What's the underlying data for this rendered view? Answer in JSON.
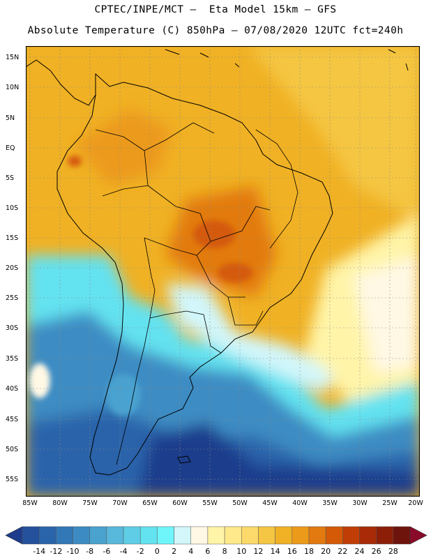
{
  "header": {
    "line1": "CPTEC/INPE/MCT —  Eta Model 15km — GFS",
    "line2": "Absolute Temperature (C) 850hPa — 07/08/2020 12UTC fct=240h"
  },
  "map": {
    "lat_labels": [
      "15N",
      "10N",
      "5N",
      "EQ",
      "5S",
      "10S",
      "15S",
      "20S",
      "25S",
      "30S",
      "35S",
      "40S",
      "45S",
      "50S",
      "55S"
    ],
    "lon_labels": [
      "85W",
      "80W",
      "75W",
      "70W",
      "65W",
      "60W",
      "55W",
      "50W",
      "45W",
      "40W",
      "35W",
      "30W",
      "25W",
      "20W"
    ]
  },
  "colorbar": {
    "labels": [
      "-14",
      "-12",
      "-10",
      "-8",
      "-6",
      "-4",
      "-2",
      "0",
      "2",
      "4",
      "6",
      "8",
      "10",
      "12",
      "14",
      "16",
      "18",
      "20",
      "22",
      "24",
      "26",
      "28"
    ],
    "colors": [
      "#1e3c8c",
      "#24509c",
      "#2a64aa",
      "#3278b6",
      "#3c8cc3",
      "#4aa2cf",
      "#58b8db",
      "#5fcde6",
      "#63e2f0",
      "#6ef6fb",
      "#d2f6fa",
      "#fff8e4",
      "#fff4a8",
      "#ffe98a",
      "#fbd96a",
      "#f5c643",
      "#f0b124",
      "#ec9a1a",
      "#e27a10",
      "#d45a08",
      "#c03e06",
      "#a82a06",
      "#8c1e08",
      "#6e140c",
      "#8a0a2a"
    ]
  }
}
